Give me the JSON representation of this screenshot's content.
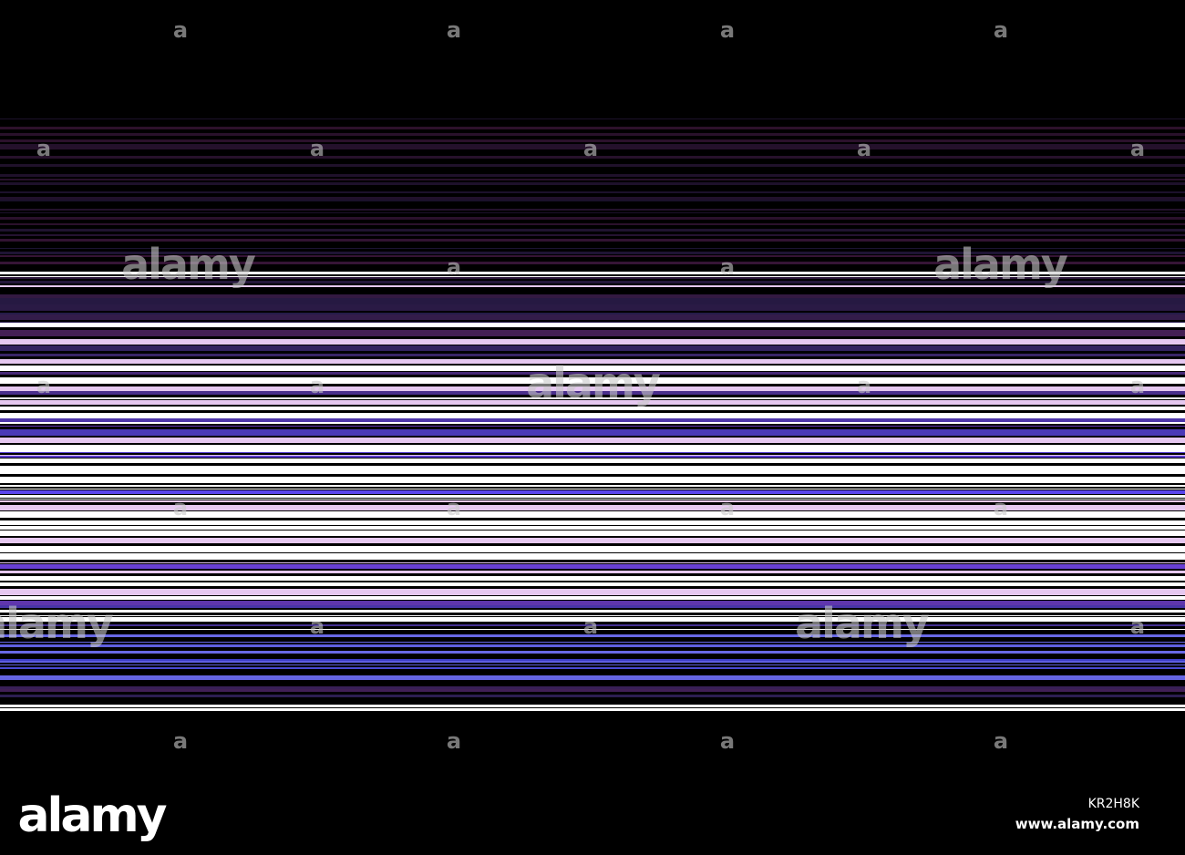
{
  "watermark": {
    "mark": "a",
    "word": "alamy"
  },
  "footer": {
    "logo": "alamy",
    "image_id": "KR2H8K",
    "url": "www.alamy.com"
  }
}
